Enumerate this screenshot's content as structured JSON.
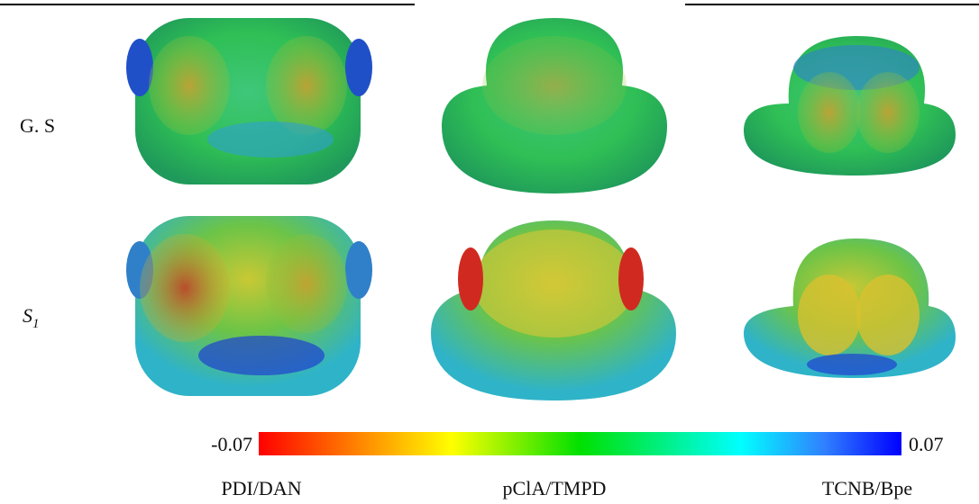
{
  "rows": [
    {
      "label": "G. S"
    },
    {
      "label": "S",
      "subscript": "1"
    }
  ],
  "columns": [
    {
      "label": "PDI/DAN"
    },
    {
      "label": "pClA/TMPD"
    },
    {
      "label": "TCNB/Bpe"
    }
  ],
  "colorbar": {
    "min_label": "-0.07",
    "max_label": "0.07"
  }
}
